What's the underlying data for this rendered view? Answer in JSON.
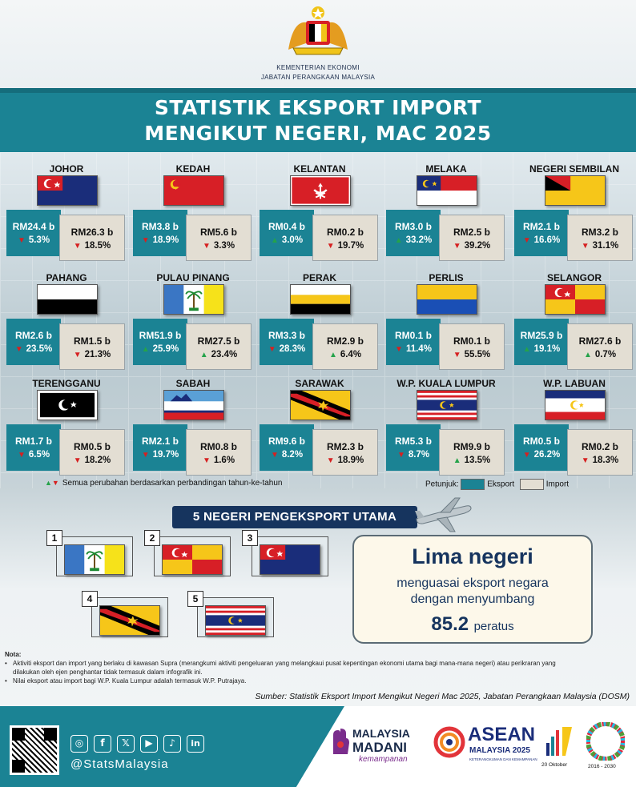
{
  "header": {
    "ministry_line1": "KEMENTERIAN EKONOMI",
    "ministry_line2": "JABATAN PERANGKAAN MALAYSIA",
    "title_line1": "STATISTIK EKSPORT IMPORT",
    "title_line2": "MENGIKUT NEGERI, MAC 2025"
  },
  "colors": {
    "teal": "#1b8394",
    "navy": "#16345e",
    "import_box": "#e3ded3",
    "up": "#25a34a",
    "down": "#d62020"
  },
  "states": [
    {
      "name": "JOHOR",
      "export_value": "RM24.4 b",
      "export_dir": "down",
      "export_pct": "5.3%",
      "import_value": "RM26.3 b",
      "import_dir": "down",
      "import_pct": "18.5%"
    },
    {
      "name": "KEDAH",
      "export_value": "RM3.8 b",
      "export_dir": "down",
      "export_pct": "18.9%",
      "import_value": "RM5.6 b",
      "import_dir": "down",
      "import_pct": "3.3%"
    },
    {
      "name": "KELANTAN",
      "export_value": "RM0.4 b",
      "export_dir": "up",
      "export_pct": "3.0%",
      "import_value": "RM0.2 b",
      "import_dir": "down",
      "import_pct": "19.7%"
    },
    {
      "name": "MELAKA",
      "export_value": "RM3.0 b",
      "export_dir": "up",
      "export_pct": "33.2%",
      "import_value": "RM2.5 b",
      "import_dir": "down",
      "import_pct": "39.2%"
    },
    {
      "name": "NEGERI SEMBILAN",
      "export_value": "RM2.1 b",
      "export_dir": "down",
      "export_pct": "16.6%",
      "import_value": "RM3.2 b",
      "import_dir": "down",
      "import_pct": "31.1%"
    },
    {
      "name": "PAHANG",
      "export_value": "RM2.6 b",
      "export_dir": "down",
      "export_pct": "23.5%",
      "import_value": "RM1.5 b",
      "import_dir": "down",
      "import_pct": "21.3%"
    },
    {
      "name": "PULAU PINANG",
      "export_value": "RM51.9 b",
      "export_dir": "up",
      "export_pct": "25.9%",
      "import_value": "RM27.5 b",
      "import_dir": "up",
      "import_pct": "23.4%"
    },
    {
      "name": "PERAK",
      "export_value": "RM3.3 b",
      "export_dir": "down",
      "export_pct": "28.3%",
      "import_value": "RM2.9 b",
      "import_dir": "up",
      "import_pct": "6.4%"
    },
    {
      "name": "PERLIS",
      "export_value": "RM0.1 b",
      "export_dir": "down",
      "export_pct": "11.4%",
      "import_value": "RM0.1 b",
      "import_dir": "down",
      "import_pct": "55.5%"
    },
    {
      "name": "SELANGOR",
      "export_value": "RM25.9 b",
      "export_dir": "up",
      "export_pct": "19.1%",
      "import_value": "RM27.6 b",
      "import_dir": "up",
      "import_pct": "0.7%"
    },
    {
      "name": "TERENGGANU",
      "export_value": "RM1.7 b",
      "export_dir": "down",
      "export_pct": "6.5%",
      "import_value": "RM0.5 b",
      "import_dir": "down",
      "import_pct": "18.2%"
    },
    {
      "name": "SABAH",
      "export_value": "RM2.1 b",
      "export_dir": "down",
      "export_pct": "19.7%",
      "import_value": "RM0.8 b",
      "import_dir": "down",
      "import_pct": "1.6%"
    },
    {
      "name": "SARAWAK",
      "export_value": "RM9.6 b",
      "export_dir": "down",
      "export_pct": "8.2%",
      "import_value": "RM2.3 b",
      "import_dir": "down",
      "import_pct": "18.9%"
    },
    {
      "name": "W.P. KUALA LUMPUR",
      "export_value": "RM5.3 b",
      "export_dir": "down",
      "export_pct": "8.7%",
      "import_value": "RM9.9 b",
      "import_dir": "up",
      "import_pct": "13.5%"
    },
    {
      "name": "W.P. LABUAN",
      "export_value": "RM0.5 b",
      "export_dir": "down",
      "export_pct": "26.2%",
      "import_value": "RM0.2 b",
      "import_dir": "down",
      "import_pct": "18.3%"
    }
  ],
  "footnote_yoy": "Semua perubahan berdasarkan perbandingan  tahun-ke-tahun",
  "legend": {
    "label": "Petunjuk:",
    "export": "Eksport",
    "import": "Import"
  },
  "top5": {
    "title": "5 NEGERI PENGEKSPORT UTAMA",
    "ranks": [
      "1",
      "2",
      "3",
      "4",
      "5"
    ]
  },
  "summary": {
    "headline": "Lima negeri",
    "line1": "menguasai eksport negara",
    "line2": "dengan menyumbang",
    "value": "85.2",
    "unit": "peratus"
  },
  "notes": {
    "heading": "Nota:",
    "item1": "Aktiviti eksport dan import yang berlaku di kawasan Supra (merangkumi aktiviti pengeluaran yang melangkaui pusat kepentingan ekonomi utama bagi mana-mana negeri) atau perikraran yang dilakukan oleh ejen penghantar tidak termasuk dalam infografik ini.",
    "item2": "Nilai eksport atau import bagi W.P. Kuala Lumpur adalah termasuk W.P. Putrajaya."
  },
  "source": "Sumber: Statistik Eksport Import Mengikut Negeri Mac 2025, Jabatan Perangkaan Malaysia (DOSM)",
  "footer": {
    "handle": "@StatsMalaysia",
    "social_icons": [
      "instagram-icon",
      "facebook-icon",
      "x-icon",
      "youtube-icon",
      "tiktok-icon",
      "linkedin-icon"
    ],
    "madani_line1": "MALAYSIA",
    "madani_line2": "MADANI",
    "madani_line3": "kemampanan",
    "asean_line1": "ASEAN",
    "asean_line2": "MALAYSIA 2025",
    "asean_line3": "KETERANGKUMAN DAN KEMAMPANAN",
    "hari_statistik": "20 Oktober",
    "sdg_years": "2016 - 2030"
  }
}
